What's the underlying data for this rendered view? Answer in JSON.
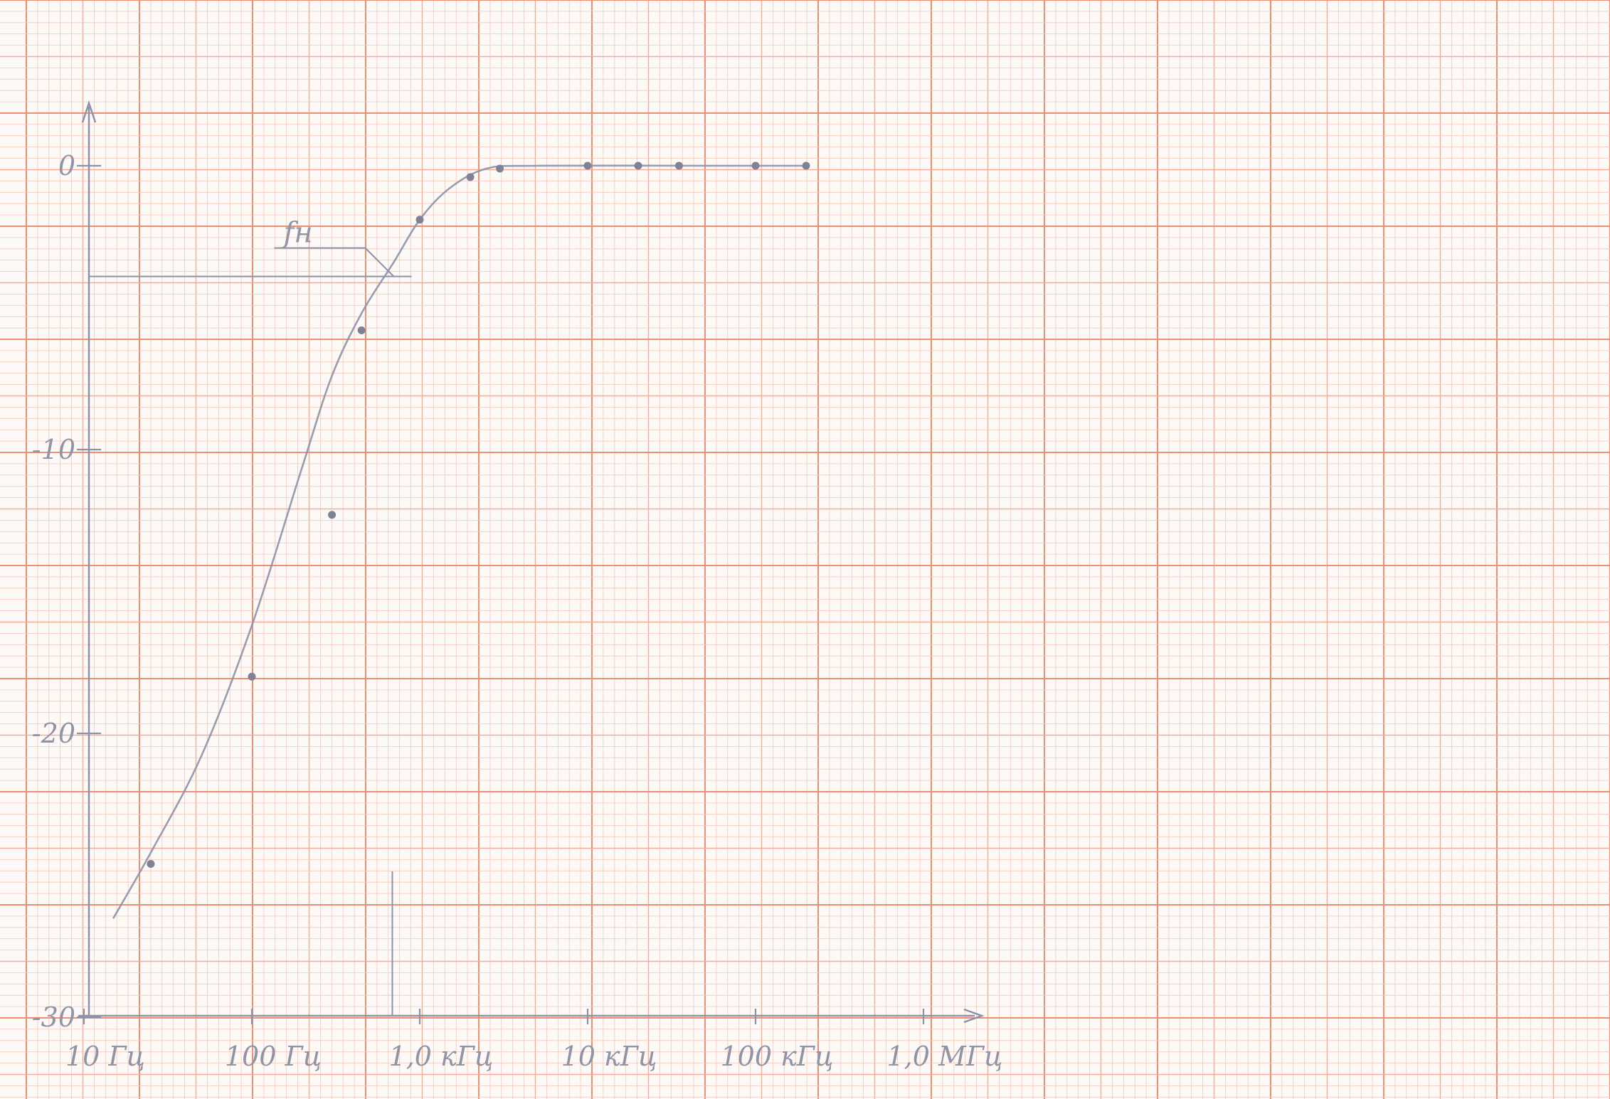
{
  "chart_data": {
    "type": "line",
    "title": "",
    "xlabel": "",
    "ylabel": "",
    "x_scale": "log",
    "xlim": [
      10,
      1000000
    ],
    "ylim": [
      -30,
      0
    ],
    "x_ticks": [
      {
        "value": 10,
        "label": "10 Гц"
      },
      {
        "value": 100,
        "label": "100 Гц"
      },
      {
        "value": 1000,
        "label": "1,0 кГц"
      },
      {
        "value": 10000,
        "label": "10 кГц"
      },
      {
        "value": 100000,
        "label": "100 кГц"
      },
      {
        "value": 1000000,
        "label": "1,0 МГц"
      }
    ],
    "y_ticks": [
      {
        "value": 0,
        "label": "0"
      },
      {
        "value": -10,
        "label": "-10"
      },
      {
        "value": -20,
        "label": "-20"
      },
      {
        "value": -30,
        "label": "-30"
      }
    ],
    "series": [
      {
        "points": [
          {
            "x": 25,
            "y": -24.6
          },
          {
            "x": 100,
            "y": -18.0
          },
          {
            "x": 300,
            "y": -12.3
          },
          {
            "x": 450,
            "y": -5.8
          },
          {
            "x": 1000,
            "y": -1.9
          },
          {
            "x": 2000,
            "y": -0.4
          },
          {
            "x": 3000,
            "y": -0.1
          },
          {
            "x": 10000,
            "y": 0.0
          },
          {
            "x": 20000,
            "y": 0.0
          },
          {
            "x": 35000,
            "y": 0.0
          },
          {
            "x": 100000,
            "y": 0.0
          },
          {
            "x": 200000,
            "y": 0.0
          }
        ],
        "curve": [
          {
            "x": 15,
            "y": -26.5
          },
          {
            "x": 25,
            "y": -24.2
          },
          {
            "x": 50,
            "y": -20.8
          },
          {
            "x": 100,
            "y": -16.2
          },
          {
            "x": 200,
            "y": -10.6
          },
          {
            "x": 300,
            "y": -7.4
          },
          {
            "x": 450,
            "y": -5.2
          },
          {
            "x": 700,
            "y": -3.4
          },
          {
            "x": 1000,
            "y": -1.9
          },
          {
            "x": 1500,
            "y": -0.8
          },
          {
            "x": 2500,
            "y": -0.1
          },
          {
            "x": 5000,
            "y": 0.0
          },
          {
            "x": 50000,
            "y": 0.0
          },
          {
            "x": 200000,
            "y": 0.0
          }
        ]
      }
    ],
    "annotations": [
      {
        "text": "f_H",
        "display": "fн",
        "x": 700,
        "y": -3.9,
        "note": "cutoff frequency at the -3 dB level"
      }
    ],
    "grid": true,
    "legend": "none",
    "colors": {
      "grid_minor": "#f6c8b8",
      "grid_mid": "#f2ad97",
      "grid_major": "#ee8f72",
      "pencil": "#8d92a8",
      "paper": "#fdf9f6"
    }
  }
}
